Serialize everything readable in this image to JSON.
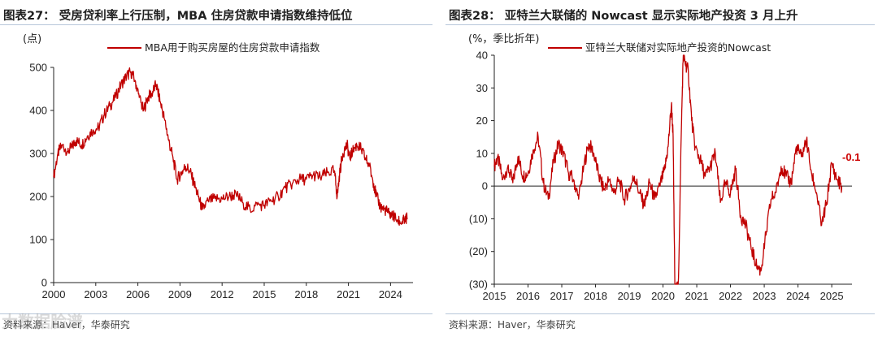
{
  "left_panel": {
    "title": "图表27： 受房贷利率上行压制，MBA 住房贷款申请指数维持低位",
    "source": "资料来源：Haver，华泰研究"
  },
  "right_panel": {
    "title": "图表28： 亚特兰大联储的 Nowcast 显示实际地产投资 3 月上升",
    "source": "资料来源：Haver，华泰研究"
  },
  "colors": {
    "series": "#c00000",
    "axis": "#222222",
    "rule": "#b8c7da"
  },
  "watermark_text": "大数据脸谱",
  "chart_data": [
    {
      "type": "line",
      "title": "受房贷利率上行压制，MBA 住房贷款申请指数维持低位",
      "unit_label": "(点)",
      "legend": "MBA用于购买房屋的住房贷款申请指数",
      "xlim": [
        2000,
        2025.6
      ],
      "ylim": [
        0,
        500
      ],
      "x_ticks": [
        2000,
        2003,
        2006,
        2009,
        2012,
        2015,
        2018,
        2021,
        2024
      ],
      "x_tick_labels": [
        "2000",
        "2003",
        "2006",
        "2009",
        "2012",
        "2015",
        "2018",
        "2021",
        "2024"
      ],
      "y_ticks": [
        0,
        100,
        200,
        300,
        400,
        500
      ],
      "y_tick_labels": [
        "0",
        "100",
        "200",
        "300",
        "400",
        "500"
      ],
      "series": [
        {
          "name": "MBA用于购买房屋的住房贷款申请指数",
          "x": [
            2000.0,
            2000.3,
            2000.6,
            2001.0,
            2001.3,
            2001.6,
            2002.0,
            2002.4,
            2002.8,
            2003.2,
            2003.6,
            2004.0,
            2004.4,
            2004.8,
            2005.2,
            2005.5,
            2005.8,
            2006.1,
            2006.4,
            2006.7,
            2007.0,
            2007.3,
            2007.6,
            2007.9,
            2008.2,
            2008.5,
            2008.8,
            2009.1,
            2009.4,
            2009.7,
            2010.0,
            2010.3,
            2010.6,
            2011.0,
            2011.5,
            2012.0,
            2012.5,
            2013.0,
            2013.5,
            2014.0,
            2014.5,
            2015.0,
            2015.5,
            2016.0,
            2016.5,
            2017.0,
            2017.5,
            2018.0,
            2018.5,
            2019.0,
            2019.5,
            2020.0,
            2020.2,
            2020.4,
            2020.6,
            2020.9,
            2021.1,
            2021.3,
            2021.6,
            2021.9,
            2022.2,
            2022.5,
            2022.8,
            2023.0,
            2023.3,
            2023.6,
            2023.9,
            2024.2,
            2024.5,
            2024.8,
            2025.0,
            2025.2
          ],
          "values": [
            245,
            300,
            320,
            305,
            315,
            330,
            320,
            340,
            355,
            360,
            390,
            410,
            430,
            460,
            480,
            490,
            470,
            430,
            400,
            430,
            440,
            460,
            420,
            380,
            330,
            290,
            240,
            255,
            270,
            260,
            230,
            200,
            170,
            190,
            195,
            195,
            200,
            205,
            185,
            170,
            180,
            180,
            190,
            200,
            220,
            230,
            240,
            240,
            250,
            245,
            255,
            260,
            200,
            260,
            300,
            320,
            290,
            305,
            320,
            310,
            290,
            270,
            230,
            200,
            175,
            170,
            160,
            155,
            145,
            140,
            145,
            150
          ]
        }
      ]
    },
    {
      "type": "line",
      "title": "亚特兰大联储的 Nowcast 显示实际地产投资 3 月上升",
      "unit_label": "(%，季比折年)",
      "legend": "亚特兰大联储对实际地产投资的Nowcast",
      "annotation": "-0.1",
      "xlim": [
        2015,
        2025.6
      ],
      "ylim": [
        -30,
        40
      ],
      "x_ticks": [
        2015,
        2016,
        2017,
        2018,
        2019,
        2020,
        2021,
        2022,
        2023,
        2024,
        2025
      ],
      "x_tick_labels": [
        "2015",
        "2016",
        "2017",
        "2018",
        "2019",
        "2020",
        "2021",
        "2022",
        "2023",
        "2024",
        "2025"
      ],
      "y_ticks": [
        40,
        30,
        20,
        10,
        0,
        -10,
        -20,
        -30
      ],
      "y_tick_labels": [
        "40",
        "30",
        "20",
        "10",
        "0",
        "(10)",
        "(20)",
        "(30)"
      ],
      "series": [
        {
          "name": "亚特兰大联储对实际地产投资的Nowcast",
          "x": [
            2015.0,
            2015.1,
            2015.25,
            2015.4,
            2015.55,
            2015.7,
            2015.85,
            2016.0,
            2016.15,
            2016.3,
            2016.45,
            2016.6,
            2016.75,
            2016.9,
            2017.05,
            2017.2,
            2017.35,
            2017.5,
            2017.65,
            2017.8,
            2017.95,
            2018.1,
            2018.25,
            2018.4,
            2018.55,
            2018.7,
            2018.85,
            2019.0,
            2019.15,
            2019.3,
            2019.45,
            2019.6,
            2019.75,
            2019.9,
            2020.05,
            2020.15,
            2020.25,
            2020.3,
            2020.35,
            2020.45,
            2020.55,
            2020.6,
            2020.65,
            2020.75,
            2020.85,
            2020.95,
            2021.1,
            2021.25,
            2021.4,
            2021.55,
            2021.7,
            2021.85,
            2022.0,
            2022.15,
            2022.3,
            2022.45,
            2022.6,
            2022.75,
            2022.9,
            2023.05,
            2023.2,
            2023.35,
            2023.5,
            2023.65,
            2023.8,
            2023.95,
            2024.1,
            2024.25,
            2024.4,
            2024.55,
            2024.7,
            2024.85,
            2025.0,
            2025.15,
            2025.3
          ],
          "values": [
            6,
            9,
            2,
            6,
            1,
            9,
            3,
            4,
            11,
            15,
            1,
            -4,
            7,
            13,
            10,
            4,
            2,
            -4,
            6,
            13,
            10,
            3,
            -1,
            2,
            -2,
            2,
            -4,
            -1,
            3,
            -2,
            -6,
            1,
            -4,
            0,
            5,
            12,
            25,
            15,
            -30,
            -32,
            20,
            40,
            38,
            35,
            20,
            12,
            8,
            3,
            6,
            10,
            -5,
            1,
            -2,
            5,
            -9,
            -12,
            -18,
            -24,
            -26,
            -15,
            -4,
            -2,
            6,
            3,
            1,
            12,
            9,
            14,
            4,
            -2,
            -12,
            -5,
            7,
            2,
            -0.1
          ]
        }
      ]
    }
  ]
}
